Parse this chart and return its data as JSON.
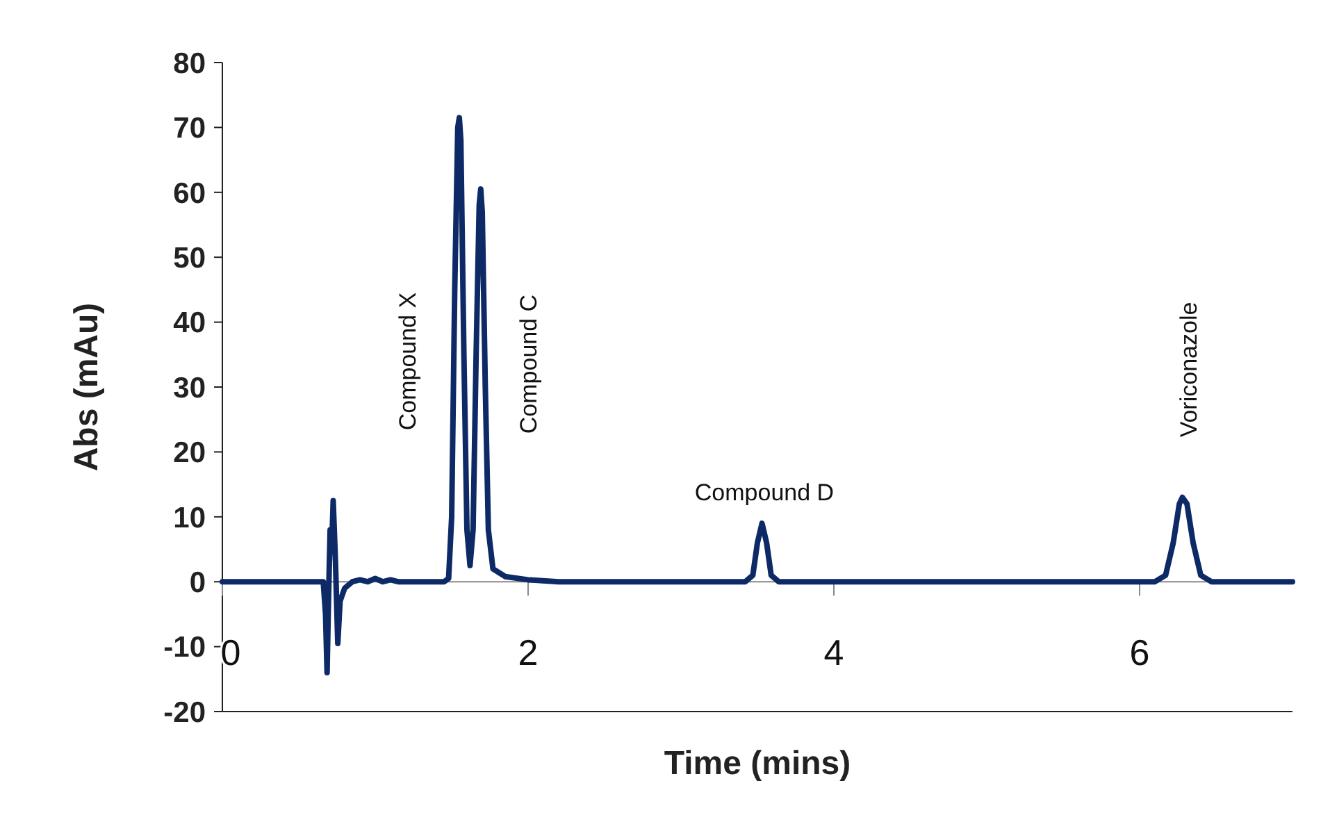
{
  "chart_data": {
    "type": "line",
    "xlabel": "Time (mins)",
    "ylabel": "Abs (mAu)",
    "xlim": [
      0,
      7
    ],
    "xticks": [
      0,
      2,
      4,
      6
    ],
    "ylim": [
      -20,
      80
    ],
    "yticks": [
      -20,
      -10,
      0,
      10,
      20,
      30,
      40,
      50,
      60,
      70,
      80
    ],
    "marker": "none",
    "line_style": "solid",
    "series": [
      {
        "color": "#0d2a66",
        "x": [
          0,
          0.6,
          0.66,
          0.675,
          0.685,
          0.695,
          0.705,
          0.715,
          0.725,
          0.74,
          0.755,
          0.77,
          0.8,
          0.85,
          0.9,
          0.95,
          1.0,
          1.05,
          1.1,
          1.15,
          1.45,
          1.48,
          1.5,
          1.52,
          1.54,
          1.55,
          1.56,
          1.58,
          1.6,
          1.62,
          1.64,
          1.66,
          1.68,
          1.69,
          1.7,
          1.72,
          1.74,
          1.77,
          1.85,
          2.0,
          2.2,
          3.42,
          3.47,
          3.5,
          3.53,
          3.56,
          3.59,
          3.64,
          6.1,
          6.17,
          6.22,
          6.26,
          6.28,
          6.31,
          6.35,
          6.4,
          6.47,
          7
        ],
        "values": [
          0,
          0,
          0,
          -5,
          -14,
          -2,
          8,
          5,
          12.5,
          3,
          -9.5,
          -3,
          -1,
          0,
          0.3,
          0,
          0.5,
          0,
          0.3,
          0,
          0,
          0.5,
          10,
          45,
          70,
          71.5,
          68,
          35,
          8,
          2.5,
          8,
          35,
          58,
          60.5,
          57,
          30,
          8,
          2,
          0.8,
          0.3,
          0,
          0,
          1,
          6,
          9,
          6,
          1,
          0,
          0,
          1,
          6,
          12,
          13,
          12,
          6,
          1,
          0,
          0
        ]
      }
    ],
    "annotations": [
      "Compound X",
      "Compound C",
      "Compound D",
      "Voriconazole"
    ]
  }
}
